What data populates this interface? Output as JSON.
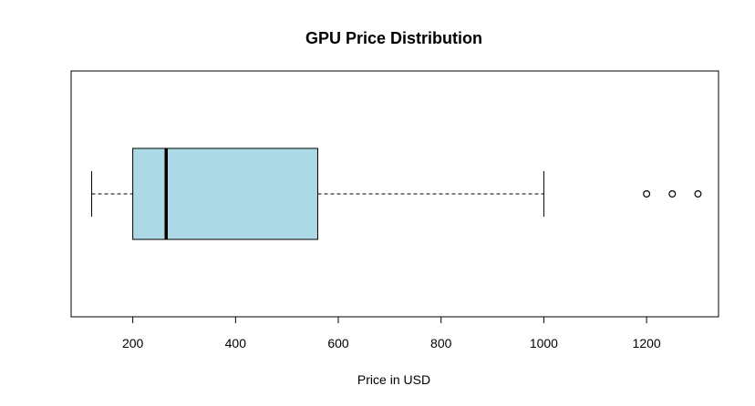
{
  "chart_data": {
    "type": "boxplot",
    "orientation": "horizontal",
    "title": "GPU Price Distribution",
    "xlabel": "Price in USD",
    "ylabel": "",
    "xlim": [
      80,
      1340
    ],
    "x_ticks": [
      200,
      400,
      600,
      800,
      1000,
      1200
    ],
    "x_tick_labels": [
      "200",
      "400",
      "600",
      "800",
      "1000",
      "1200"
    ],
    "grid": false,
    "box": {
      "whisker_low": 120,
      "q1": 200,
      "median": 265,
      "q3": 560,
      "whisker_high": 1000,
      "outliers": [
        1200,
        1250,
        1300
      ]
    },
    "colors": {
      "box_fill": "#add8e6",
      "stroke": "#000000"
    }
  }
}
